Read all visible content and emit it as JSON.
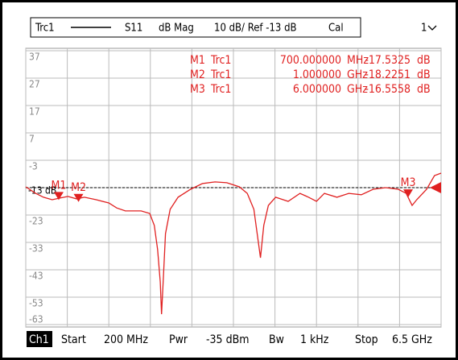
{
  "header": {
    "trace": "Trc1",
    "param": "S11",
    "format": "dB Mag",
    "scale": "10 dB/ Ref -13 dB",
    "cal": "Cal",
    "window": "1"
  },
  "chart_data": {
    "type": "line",
    "series": [
      {
        "name": "Trc1",
        "color": "#e02020",
        "x": [
          0.2,
          0.35,
          0.47,
          0.6,
          0.72,
          0.84,
          0.97,
          1.09,
          1.27,
          1.46,
          1.58,
          1.71,
          1.83,
          1.95,
          2.08,
          2.15,
          2.2,
          2.24,
          2.26,
          2.29,
          2.32,
          2.39,
          2.51,
          2.7,
          2.88,
          3.07,
          3.25,
          3.44,
          3.56,
          3.66,
          3.71,
          3.76,
          3.81,
          3.88,
          3.99,
          4.18,
          4.36,
          4.49,
          4.61,
          4.73,
          4.92,
          5.1,
          5.29,
          5.47,
          5.66,
          5.85,
          5.97,
          6.06,
          6.13,
          6.28,
          6.4,
          6.5
        ],
        "values": [
          -12.7,
          -15.1,
          -16.5,
          -17.4,
          -16.8,
          -16.2,
          -17.1,
          -16.5,
          -17.4,
          -18.6,
          -20.4,
          -21.5,
          -21.5,
          -21.5,
          -22.4,
          -26.8,
          -35.6,
          -47.4,
          -59.2,
          -44.5,
          -29.8,
          -20.9,
          -16.5,
          -13.6,
          -11.5,
          -10.9,
          -11.2,
          -12.7,
          -15.1,
          -20.9,
          -29.8,
          -38.6,
          -26.8,
          -19.5,
          -16.5,
          -18,
          -15.1,
          -16.5,
          -18,
          -15.1,
          -16.5,
          -15.1,
          -15.6,
          -13.6,
          -13,
          -13.6,
          -15.1,
          -19.5,
          -17.4,
          -13.6,
          -8.6,
          -7.7
        ]
      }
    ],
    "xlim": [
      0.2,
      6.5
    ],
    "xticks": [
      0.2,
      0.83,
      1.46,
      2.09,
      2.72,
      3.35,
      3.98,
      4.61,
      5.24,
      5.87,
      6.5
    ],
    "ylim": [
      -63,
      37
    ],
    "yticks": [
      37,
      27,
      17,
      7,
      -3,
      {
        "value": -13,
        "label": "-13 dB"
      },
      -23,
      -33,
      -43,
      -53,
      -63
    ],
    "ref": -13,
    "grid": true,
    "markers": [
      {
        "name": "M1",
        "trace": "Trc1",
        "x": 0.7,
        "x_label": "700.000000",
        "x_unit": "MHz",
        "value": -17.5325,
        "unit": "dB"
      },
      {
        "name": "M2",
        "trace": "Trc1",
        "x": 1,
        "x_label": "1.000000",
        "x_unit": "GHz",
        "value": -18.2251,
        "unit": "dB"
      },
      {
        "name": "M3",
        "trace": "Trc1",
        "x": 6,
        "x_label": "6.000000",
        "x_unit": "GHz",
        "value": -16.5558,
        "unit": "dB"
      }
    ]
  },
  "footer": {
    "channel": "Ch1",
    "start_label": "Start",
    "start": "200 MHz",
    "power_label": "Pwr",
    "power": "-35 dBm",
    "bw_label": "Bw",
    "bw": "1 kHz",
    "stop_label": "Stop",
    "stop": "6.5 GHz"
  }
}
